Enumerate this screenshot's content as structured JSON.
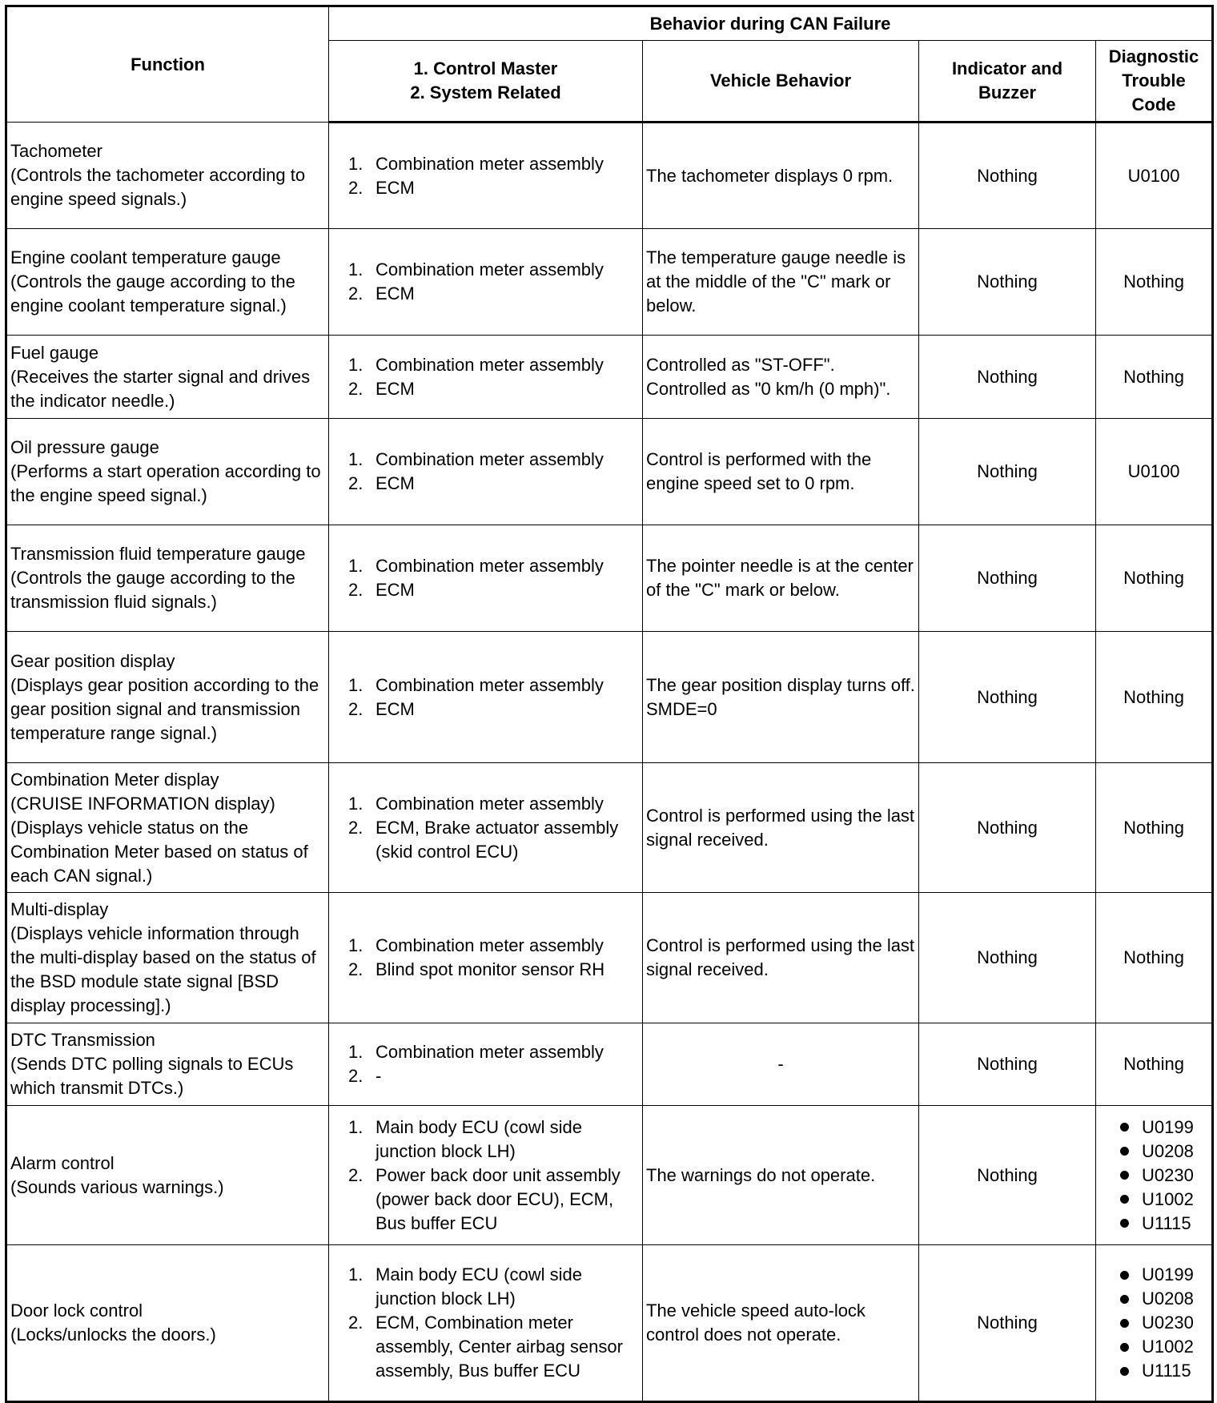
{
  "headers": {
    "function": "Function",
    "behavior_group": "Behavior during CAN Failure",
    "control_master_1": "1.  Control Master",
    "control_master_2": "2.  System Related",
    "vehicle_behavior": "Vehicle Behavior",
    "indicator": "Indicator and Buzzer",
    "dtc": "Diagnostic Trouble Code"
  },
  "rows": [
    {
      "function": [
        "Tachometer",
        "(Controls the tachometer according to engine speed signals.)"
      ],
      "control": [
        "Combination meter assembly",
        "ECM"
      ],
      "behavior": "The tachometer displays 0 rpm.",
      "indicator": "Nothing",
      "dtc": [
        "U0100"
      ]
    },
    {
      "function": [
        "Engine coolant temperature gauge",
        "(Controls the gauge according to the engine coolant temperature signal.)"
      ],
      "control": [
        "Combination meter assembly",
        "ECM"
      ],
      "behavior": "The temperature gauge needle is at the middle of the \"C\" mark or below.",
      "indicator": "Nothing",
      "dtc": [
        "Nothing"
      ]
    },
    {
      "function": [
        "Fuel gauge",
        "(Receives the starter signal and drives the indicator needle.)"
      ],
      "control": [
        "Combination meter assembly",
        "ECM"
      ],
      "behavior": "Controlled as \"ST-OFF\". Controlled as \"0 km/h (0 mph)\".",
      "indicator": "Nothing",
      "dtc": [
        "Nothing"
      ]
    },
    {
      "function": [
        "Oil pressure gauge",
        "(Performs a start operation according to the engine speed signal.)"
      ],
      "control": [
        "Combination meter assembly",
        "ECM"
      ],
      "behavior": "Control is performed with the engine speed set to 0 rpm.",
      "indicator": "Nothing",
      "dtc": [
        "U0100"
      ]
    },
    {
      "function": [
        "Transmission fluid temperature gauge",
        "(Controls the gauge according to the transmission fluid signals.)"
      ],
      "control": [
        "Combination meter assembly",
        "ECM"
      ],
      "behavior": "The pointer needle is at the center of the \"C\" mark or below.",
      "indicator": "Nothing",
      "dtc": [
        "Nothing"
      ]
    },
    {
      "function": [
        "Gear position display",
        "(Displays gear position according to the gear position signal and transmission temperature range signal.)"
      ],
      "control": [
        "Combination meter assembly",
        "ECM"
      ],
      "behavior": "The gear position display turns off.\nSMDE=0",
      "indicator": "Nothing",
      "dtc": [
        "Nothing"
      ]
    },
    {
      "function": [
        "Combination Meter display",
        "(CRUISE INFORMATION display)",
        "(Displays vehicle status on the Combination Meter based on status of each CAN signal.)"
      ],
      "control": [
        "Combination meter assembly",
        "ECM, Brake actuator assembly (skid control ECU)"
      ],
      "behavior": "Control is performed using the last signal received.",
      "indicator": "Nothing",
      "dtc": [
        "Nothing"
      ]
    },
    {
      "function": [
        "Multi-display",
        "(Displays vehicle information through the multi-display based on the status of the BSD module state signal [BSD display processing].)"
      ],
      "control": [
        "Combination meter assembly",
        "Blind spot monitor sensor RH"
      ],
      "behavior": "Control is performed using the last signal received.",
      "indicator": "Nothing",
      "dtc": [
        "Nothing"
      ]
    },
    {
      "function": [
        "DTC Transmission",
        "(Sends DTC polling signals to ECUs which transmit DTCs.)"
      ],
      "control": [
        "Combination meter assembly",
        "-"
      ],
      "behavior": "-",
      "indicator": "Nothing",
      "dtc": [
        "Nothing"
      ]
    },
    {
      "function": [
        "Alarm control",
        "(Sounds various warnings.)"
      ],
      "control": [
        "Main body ECU (cowl side junction block LH)",
        "Power back door unit assembly (power back door ECU), ECM, Bus buffer ECU"
      ],
      "behavior": "The warnings do not operate.",
      "indicator": "Nothing",
      "dtc_list": [
        "U0199",
        "U0208",
        "U0230",
        "U1002",
        "U1115"
      ]
    },
    {
      "function": [
        "Door lock control",
        "(Locks/unlocks the doors.)"
      ],
      "control": [
        "Main body ECU (cowl side junction block LH)",
        "ECM, Combination meter assembly, Center airbag sensor assembly, Bus buffer ECU"
      ],
      "behavior": "The vehicle speed auto-lock control does not operate.",
      "indicator": "Nothing",
      "dtc_list": [
        "U0199",
        "U0208",
        "U0230",
        "U1002",
        "U1115"
      ]
    }
  ]
}
